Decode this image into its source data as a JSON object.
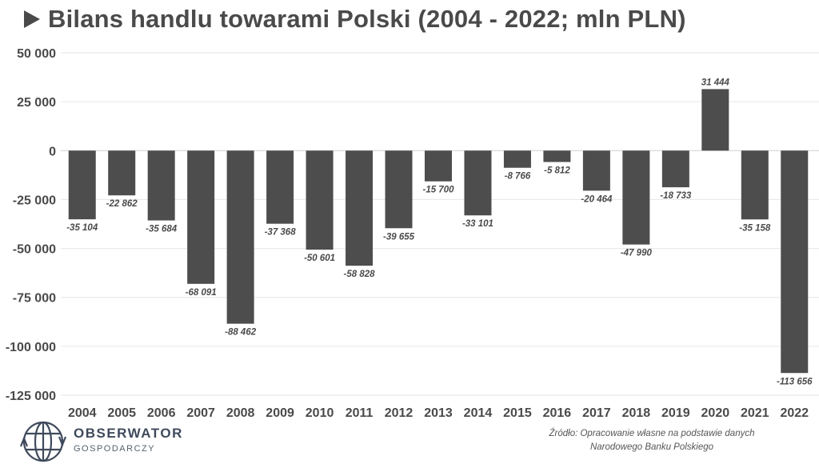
{
  "title": "Bilans handlu towarami Polski (2004 - 2022; mln PLN)",
  "source_line1": "Źródło: Opracowanie własne na podstawie danych",
  "source_line2": "Narodowego Banku Polskiego",
  "logo": {
    "name": "OBSERWATOR",
    "sub": "GOSPODARCZY"
  },
  "colors": {
    "bar": "#4d4d4d",
    "text": "#4a4a4a",
    "grid": "#e6e6e6"
  },
  "chart_data": {
    "type": "bar",
    "title": "Bilans handlu towarami Polski (2004 - 2022; mln PLN)",
    "xlabel": "",
    "ylabel": "",
    "ylim": [
      -125000,
      50000
    ],
    "yticks": [
      50000,
      25000,
      0,
      -25000,
      -50000,
      -75000,
      -100000,
      -125000
    ],
    "ytick_labels": [
      "50 000",
      "25 000",
      "0",
      "-25 000",
      "-50 000",
      "-75 000",
      "-100 000",
      "-125 000"
    ],
    "grid": true,
    "categories": [
      "2004",
      "2005",
      "2006",
      "2007",
      "2008",
      "2009",
      "2010",
      "2011",
      "2012",
      "2013",
      "2014",
      "2015",
      "2016",
      "2017",
      "2018",
      "2019",
      "2020",
      "2021",
      "2022"
    ],
    "values": [
      -35104,
      -22862,
      -35684,
      -68091,
      -88462,
      -37368,
      -50601,
      -58828,
      -39655,
      -15700,
      -33101,
      -8766,
      -5812,
      -20464,
      -47990,
      -18733,
      31444,
      -35158,
      -113656
    ],
    "data_labels": [
      "-35 104",
      "-22 862",
      "-35 684",
      "-68 091",
      "-88 462",
      "-37 368",
      "-50 601",
      "-58 828",
      "-39 655",
      "-15 700",
      "-33 101",
      "-8 766",
      "-5 812",
      "-20 464",
      "-47 990",
      "-18 733",
      "31 444",
      "-35 158",
      "-113 656"
    ]
  }
}
